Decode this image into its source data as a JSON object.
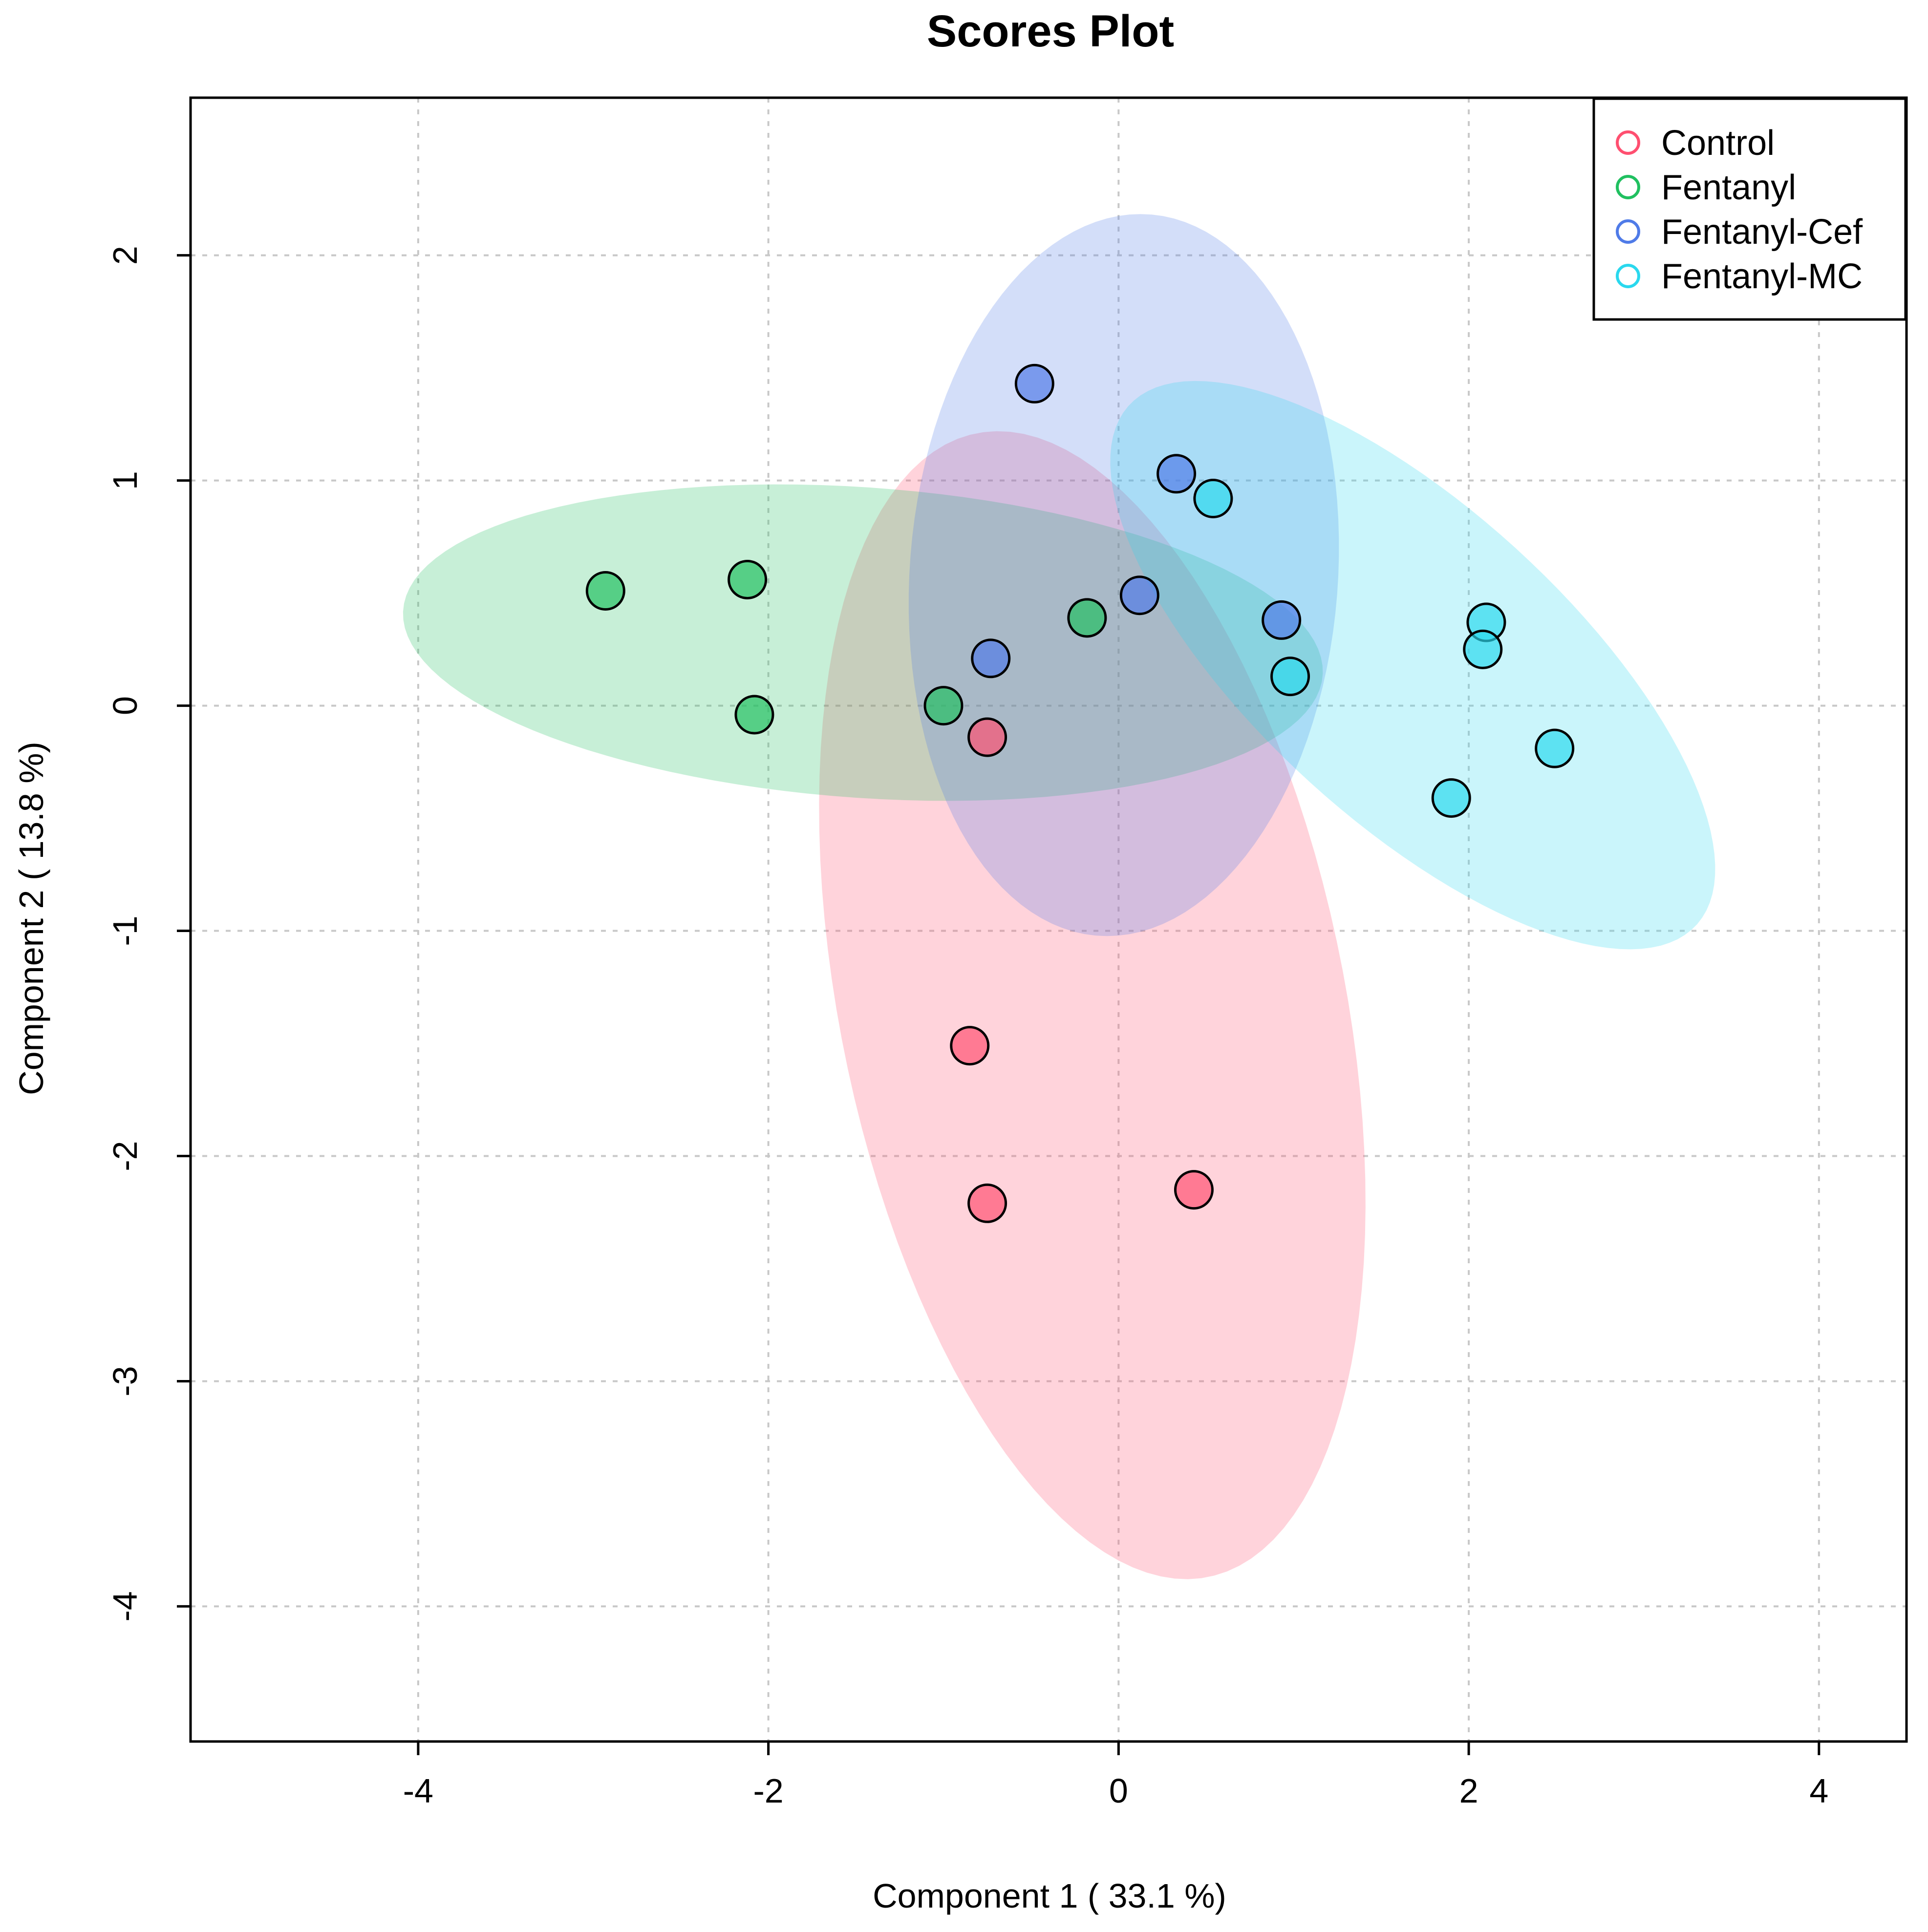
{
  "chart_data": {
    "type": "scatter",
    "title": "Scores Plot",
    "xlabel": "Component 1 ( 33.1 %)",
    "ylabel": "Component 2 ( 13.8 %)",
    "xlim": [
      -5.3,
      4.5
    ],
    "ylim": [
      -4.6,
      2.7
    ],
    "xticks": [
      -4,
      -2,
      0,
      2,
      4
    ],
    "yticks": [
      -4,
      -3,
      -2,
      -1,
      0,
      1,
      2
    ],
    "grid": true,
    "legend_position": "top-right",
    "series": [
      {
        "name": "Control",
        "color": "#ff4f70",
        "points": [
          [
            -0.75,
            -0.14
          ],
          [
            -0.85,
            -1.51
          ],
          [
            -0.75,
            -2.21
          ],
          [
            0.43,
            -2.15
          ]
        ],
        "ellipse": {
          "center": [
            -0.15,
            -1.33
          ],
          "semi_axes": [
            2.63,
            1.42
          ],
          "angle_deg": -73
        }
      },
      {
        "name": "Fentanyl",
        "color": "#20c060",
        "points": [
          [
            -2.93,
            0.51
          ],
          [
            -2.12,
            0.56
          ],
          [
            -2.08,
            -0.04
          ],
          [
            -1.0,
            0.0
          ],
          [
            -0.18,
            0.39
          ]
        ],
        "ellipse": {
          "center": [
            -1.46,
            0.28
          ],
          "semi_axes": [
            2.63,
            0.69
          ],
          "angle_deg": -3
        }
      },
      {
        "name": "Fentanyl-Cef",
        "color": "#4f7be8",
        "points": [
          [
            -0.48,
            1.43
          ],
          [
            0.33,
            1.03
          ],
          [
            0.12,
            0.49
          ],
          [
            0.93,
            0.38
          ],
          [
            -0.73,
            0.21
          ]
        ],
        "ellipse": {
          "center": [
            0.03,
            0.58
          ],
          "semi_axes": [
            1.61,
            1.22
          ],
          "angle_deg": 82
        }
      },
      {
        "name": "Fentanyl-MC",
        "color": "#2ad8ee",
        "points": [
          [
            0.54,
            0.92
          ],
          [
            0.98,
            0.13
          ],
          [
            2.1,
            0.37
          ],
          [
            2.08,
            0.25
          ],
          [
            2.49,
            -0.19
          ],
          [
            1.9,
            -0.41
          ]
        ],
        "ellipse": {
          "center": [
            1.68,
            0.18
          ],
          "semi_axes": [
            2.0,
            0.76
          ],
          "angle_deg": -33
        }
      }
    ]
  }
}
